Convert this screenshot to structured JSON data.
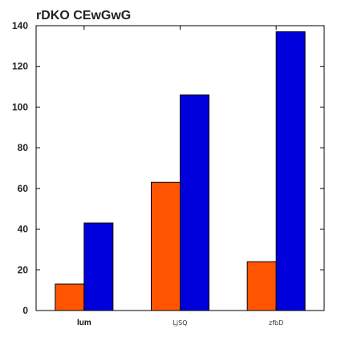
{
  "chart_data": {
    "type": "bar",
    "title": "rDKO CEwGwG",
    "categories": [
      "lum",
      "ĻjSQ",
      "zfbD"
    ],
    "series": [
      {
        "values": [
          13,
          63,
          24
        ],
        "color": "#ff5500"
      },
      {
        "values": [
          43,
          106,
          137
        ],
        "color": "#0000dd"
      }
    ],
    "ylim": [
      0,
      140
    ],
    "yticks": [
      0,
      20,
      40,
      60,
      80,
      100,
      120,
      140
    ],
    "grid": false,
    "legend": "none"
  }
}
